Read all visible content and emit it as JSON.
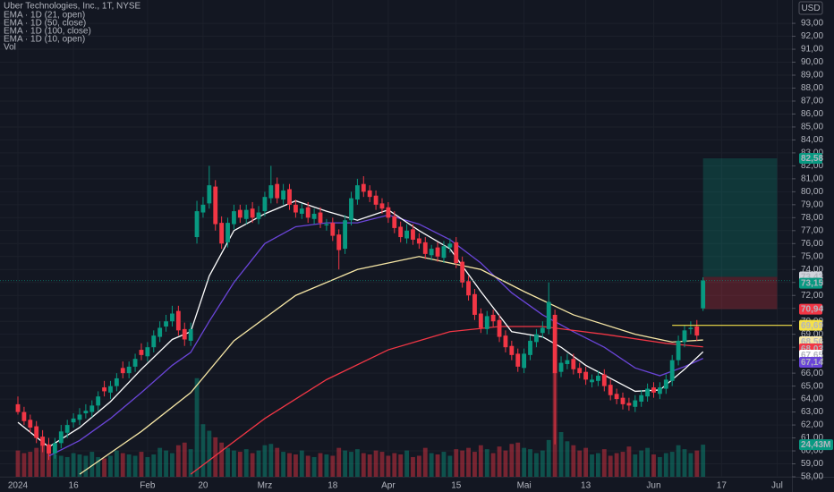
{
  "chart_data": {
    "type": "candlestick",
    "title": "Uber Technologies, Inc., 1T, NYSE",
    "volume_name": "Vol",
    "currency": "USD",
    "up_color": "#089981",
    "down_color": "#f23645",
    "xlim": [
      -2.9,
      125.4
    ],
    "ylim": [
      58,
      94.8
    ],
    "vlim": [
      0,
      100
    ],
    "grid": true,
    "xticks": [
      {
        "value": 0,
        "label": "2024"
      },
      {
        "value": 9,
        "label": "16"
      },
      {
        "value": 21,
        "label": "Feb"
      },
      {
        "value": 30,
        "label": "20"
      },
      {
        "value": 40,
        "label": "Mrz"
      },
      {
        "value": 51,
        "label": "18"
      },
      {
        "value": 60,
        "label": "Apr"
      },
      {
        "value": 71,
        "label": "15"
      },
      {
        "value": 82,
        "label": "Mai"
      },
      {
        "value": 92,
        "label": "13"
      },
      {
        "value": 103,
        "label": "Jun"
      },
      {
        "value": 114,
        "label": "17"
      },
      {
        "value": 123,
        "label": "Jul"
      }
    ],
    "yticks": [
      {
        "value": 58,
        "label": "58,00"
      },
      {
        "value": 59,
        "label": "59,00"
      },
      {
        "value": 60,
        "label": "60,00"
      },
      {
        "value": 61,
        "label": "61,00"
      },
      {
        "value": 62,
        "label": "62,00"
      },
      {
        "value": 63,
        "label": "63,00"
      },
      {
        "value": 64,
        "label": "64,00"
      },
      {
        "value": 65,
        "label": "65,00"
      },
      {
        "value": 66,
        "label": "66,00"
      },
      {
        "value": 67,
        "label": "67,00"
      },
      {
        "value": 68,
        "label": "68,00"
      },
      {
        "value": 69,
        "label": "69,00"
      },
      {
        "value": 70,
        "label": "70,00"
      },
      {
        "value": 71,
        "label": "71,00"
      },
      {
        "value": 72,
        "label": "72,00"
      },
      {
        "value": 73,
        "label": "73,00"
      },
      {
        "value": 74,
        "label": "74,00"
      },
      {
        "value": 75,
        "label": "75,00"
      },
      {
        "value": 76,
        "label": "76,00"
      },
      {
        "value": 77,
        "label": "77,00"
      },
      {
        "value": 78,
        "label": "78,00"
      },
      {
        "value": 79,
        "label": "79,00"
      },
      {
        "value": 80,
        "label": "80,00"
      },
      {
        "value": 81,
        "label": "81,00"
      },
      {
        "value": 82,
        "label": "82,00"
      },
      {
        "value": 83,
        "label": "83,00"
      },
      {
        "value": 84,
        "label": "84,00"
      },
      {
        "value": 85,
        "label": "85,00"
      },
      {
        "value": 86,
        "label": "86,00"
      },
      {
        "value": 87,
        "label": "87,00"
      },
      {
        "value": 88,
        "label": "88,00"
      },
      {
        "value": 89,
        "label": "89,00"
      },
      {
        "value": 90,
        "label": "90,00"
      },
      {
        "value": 91,
        "label": "91,00"
      },
      {
        "value": 92,
        "label": "92,00"
      },
      {
        "value": 93,
        "label": "93,00"
      }
    ],
    "open": [
      63.6,
      63.0,
      62.4,
      61.9,
      61.1,
      60.5,
      59.8,
      60.6,
      61.4,
      62.2,
      62.4,
      62.9,
      63.0,
      63.5,
      64.9,
      64.5,
      65.0,
      66.4,
      66.0,
      66.5,
      67.8,
      67.3,
      68.0,
      68.8,
      69.6,
      70.0,
      70.8,
      69.4,
      68.5,
      76.5,
      78.4,
      79.1,
      80.4,
      77.6,
      76.1,
      77.5,
      78.6,
      77.9,
      78.7,
      77.9,
      78.5,
      79.5,
      80.6,
      79.4,
      80.2,
      79.0,
      78.3,
      78.8,
      77.9,
      78.4,
      77.4,
      77.6,
      76.7,
      75.6,
      77.8,
      79.4,
      80.6,
      80.1,
      79.7,
      79.1,
      78.8,
      78.1,
      77.3,
      76.4,
      77.1,
      76.4,
      76.1,
      75.1,
      75.7,
      74.9,
      75.7,
      76.1,
      74.6,
      73.1,
      72.1,
      70.6,
      69.4,
      70.5,
      70.1,
      68.9,
      68.1,
      67.5,
      66.4,
      67.4,
      68.4,
      69.1,
      69.4,
      70.5,
      66.1,
      66.7,
      67.1,
      66.4,
      66.1,
      65.3,
      65.4,
      65.9,
      65.1,
      64.4,
      64.1,
      63.7,
      63.4,
      63.8,
      64.2,
      64.9,
      64.4,
      64.8,
      65.4,
      67.0,
      68.4,
      69.4,
      69.6,
      71.0
    ],
    "high": [
      64.2,
      63.4,
      62.8,
      62.3,
      61.6,
      61.0,
      61.0,
      62.0,
      62.4,
      62.9,
      63.3,
      63.6,
      63.9,
      64.6,
      65.4,
      65.4,
      66.0,
      66.9,
      66.9,
      67.5,
      68.3,
      68.4,
      69.3,
      70.0,
      70.5,
      71.2,
      71.2,
      69.9,
      69.9,
      79.3,
      79.6,
      82.0,
      80.9,
      78.1,
      78.0,
      79.0,
      79.0,
      79.0,
      79.2,
      78.9,
      80.0,
      82.0,
      81.1,
      80.6,
      80.6,
      79.4,
      79.1,
      79.2,
      78.7,
      78.8,
      77.9,
      78.0,
      77.1,
      78.2,
      80.0,
      81.0,
      81.2,
      80.5,
      80.1,
      79.5,
      79.2,
      78.5,
      77.7,
      77.5,
      77.5,
      76.8,
      76.5,
      75.9,
      76.1,
      76.2,
      76.4,
      76.5,
      75.0,
      73.5,
      72.5,
      71.0,
      70.8,
      70.9,
      70.5,
      69.3,
      68.5,
      67.9,
      67.9,
      68.9,
      69.4,
      70.0,
      73.0,
      70.9,
      67.3,
      67.5,
      67.5,
      66.8,
      66.5,
      65.9,
      66.2,
      66.3,
      65.5,
      64.8,
      64.5,
      64.1,
      64.3,
      64.7,
      65.2,
      65.3,
      65.3,
      65.9,
      67.4,
      68.9,
      69.7,
      70.0,
      70.1,
      73.4
    ],
    "low": [
      62.8,
      62.0,
      61.4,
      60.6,
      59.9,
      59.3,
      59.4,
      60.2,
      61.0,
      61.8,
      62.0,
      62.5,
      62.6,
      63.1,
      64.2,
      64.0,
      64.6,
      65.6,
      65.6,
      66.1,
      67.0,
      66.9,
      67.6,
      68.4,
      69.2,
      69.6,
      68.9,
      68.1,
      68.1,
      76.0,
      78.0,
      78.7,
      77.0,
      75.6,
      75.7,
      77.1,
      77.6,
      77.5,
      77.6,
      77.5,
      78.1,
      79.1,
      79.1,
      79.0,
      78.6,
      78.0,
      77.9,
      77.6,
      77.5,
      77.2,
      77.0,
      76.2,
      74.0,
      75.2,
      77.4,
      79.0,
      79.6,
      79.2,
      78.6,
      78.3,
      77.6,
      76.8,
      76.1,
      76.0,
      75.9,
      75.6,
      74.8,
      74.7,
      74.6,
      74.5,
      75.3,
      74.1,
      72.6,
      71.6,
      70.1,
      69.1,
      69.0,
      69.6,
      68.4,
      67.6,
      67.0,
      66.1,
      66.0,
      67.0,
      68.0,
      68.7,
      69.0,
      60.5,
      65.7,
      66.3,
      65.9,
      65.6,
      65.1,
      64.9,
      65.0,
      64.6,
      63.9,
      63.6,
      63.2,
      63.1,
      63.0,
      63.4,
      63.8,
      64.1,
      64.0,
      64.4,
      65.0,
      66.6,
      68.0,
      69.0,
      68.5,
      70.8
    ],
    "close": [
      63.0,
      62.3,
      61.8,
      61.0,
      60.4,
      59.8,
      60.6,
      61.5,
      62.0,
      62.5,
      62.8,
      63.1,
      63.5,
      64.2,
      64.6,
      65.0,
      65.6,
      66.0,
      66.5,
      67.1,
      67.4,
      68.0,
      68.9,
      69.5,
      70.0,
      70.6,
      69.3,
      68.6,
      69.4,
      78.5,
      79.0,
      80.5,
      77.5,
      76.0,
      77.6,
      78.5,
      78.0,
      78.6,
      78.0,
      78.4,
      79.6,
      80.5,
      79.5,
      80.1,
      79.0,
      78.4,
      78.7,
      78.0,
      78.3,
      77.6,
      77.5,
      76.6,
      75.5,
      77.8,
      79.5,
      80.5,
      80.0,
      79.6,
      79.0,
      78.7,
      78.0,
      77.2,
      76.5,
      77.0,
      76.3,
      76.0,
      75.2,
      75.6,
      75.0,
      75.8,
      76.0,
      74.5,
      73.0,
      72.0,
      70.5,
      69.5,
      70.4,
      70.0,
      68.8,
      68.0,
      67.4,
      66.5,
      67.5,
      68.5,
      69.0,
      69.5,
      71.5,
      66.0,
      66.8,
      67.0,
      66.3,
      66.0,
      65.5,
      65.5,
      65.8,
      65.0,
      64.3,
      64.0,
      63.6,
      63.5,
      63.9,
      64.3,
      64.8,
      64.5,
      64.9,
      65.5,
      67.0,
      68.5,
      69.3,
      69.5,
      68.9,
      73.15
    ],
    "last_label": "73,15",
    "volume": [
      20,
      18,
      19,
      22,
      24,
      21,
      17,
      16,
      15,
      18,
      17,
      16,
      19,
      15,
      14,
      16,
      20,
      18,
      17,
      16,
      19,
      15,
      17,
      22,
      20,
      18,
      24,
      26,
      21,
      75,
      40,
      35,
      30,
      26,
      22,
      20,
      19,
      21,
      18,
      20,
      24,
      25,
      22,
      19,
      18,
      17,
      20,
      16,
      15,
      18,
      17,
      16,
      22,
      20,
      19,
      21,
      18,
      17,
      20,
      19,
      16,
      18,
      17,
      20,
      15,
      16,
      22,
      18,
      17,
      19,
      16,
      21,
      20,
      22,
      19,
      24,
      21,
      18,
      23,
      20,
      25,
      26,
      22,
      21,
      18,
      20,
      28,
      80,
      34,
      27,
      24,
      20,
      22,
      17,
      18,
      21,
      16,
      18,
      19,
      23,
      17,
      20,
      22,
      17,
      15,
      18,
      19,
      24,
      21,
      18,
      20,
      24.43
    ],
    "volume_last_label": "24,43M",
    "series": [
      {
        "name": "EMA · 1D (21, open)",
        "color": "#6a45d8",
        "x": [
          5,
          10,
          15,
          20,
          25,
          28,
          31,
          35,
          40,
          45,
          50,
          55,
          60,
          65,
          70,
          75,
          80,
          85,
          90,
          95,
          100,
          104,
          108,
          111
        ],
        "values": [
          59.6,
          60.8,
          62.5,
          64.5,
          66.6,
          67.6,
          70.0,
          73.0,
          76.0,
          77.3,
          77.6,
          77.6,
          78.2,
          77.5,
          76.3,
          74.5,
          72.2,
          70.5,
          69.2,
          68.0,
          66.4,
          65.8,
          66.5,
          67.14
        ],
        "last_label": "67,14",
        "label_text": "#ffffff"
      },
      {
        "name": "EMA · 1D (50, close)",
        "color": "#f7e7a6",
        "x": [
          10,
          20,
          28,
          35,
          45,
          55,
          65,
          75,
          82,
          90,
          100,
          106,
          111
        ],
        "values": [
          58.2,
          61.5,
          64.5,
          68.5,
          72.0,
          74.0,
          75.0,
          74.0,
          72.3,
          70.5,
          69.0,
          68.4,
          68.56
        ],
        "last_label": "68,56",
        "label_text": "#131722"
      },
      {
        "name": "EMA · 1D (100, close)",
        "color": "#f23645",
        "x": [
          28,
          40,
          50,
          60,
          70,
          78,
          85,
          95,
          105,
          111
        ],
        "values": [
          58.2,
          62.5,
          65.5,
          67.8,
          69.2,
          69.6,
          69.6,
          69.0,
          68.3,
          68.03
        ],
        "last_label": "68,03",
        "label_text": "#ffffff"
      },
      {
        "name": "EMA · 1D (10, open)",
        "color": "#ffffff",
        "x": [
          0,
          5,
          10,
          15,
          20,
          25,
          28,
          31,
          35,
          40,
          45,
          50,
          55,
          60,
          65,
          70,
          75,
          80,
          85,
          88,
          92,
          96,
          100,
          104,
          108,
          111
        ],
        "values": [
          62.2,
          60.3,
          61.8,
          63.8,
          66.3,
          68.6,
          69.2,
          73.5,
          77.0,
          78.3,
          79.3,
          78.5,
          77.8,
          78.6,
          77.0,
          75.6,
          72.3,
          69.2,
          68.8,
          68.0,
          66.6,
          65.6,
          64.6,
          64.7,
          66.3,
          67.65
        ],
        "last_label": "67,65",
        "label_text": "#131722"
      }
    ],
    "hline": {
      "value": 69.69,
      "label": "69,69",
      "from": 106,
      "color": "#f5e14a"
    },
    "position": {
      "x": [
        111,
        123
      ],
      "target": {
        "value": 82.58,
        "label": "82,58"
      },
      "entry": {
        "value": 73.43,
        "label": "73,43"
      },
      "stop": {
        "value": 70.94,
        "label": "70,94"
      }
    }
  }
}
